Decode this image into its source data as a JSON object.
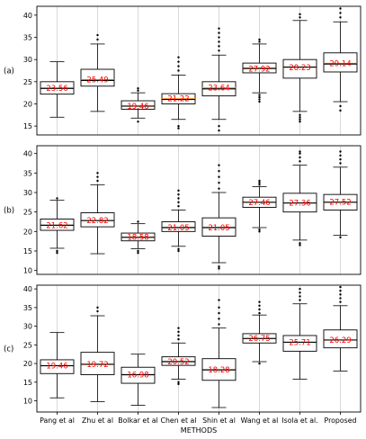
{
  "chart_data": {
    "type": "box",
    "xlabel": "METHODS",
    "categories": [
      "Pang et al",
      "Zhu et al",
      "Bolkar et al",
      "Chen et al",
      "Shin et al",
      "Wang et al",
      "Isola et al.",
      "Proposed"
    ],
    "panels": [
      {
        "label": "(a)",
        "ylim": [
          13,
          42
        ],
        "yticks": [
          "15",
          "20",
          "25",
          "30",
          "35",
          "40"
        ],
        "boxes": [
          {
            "whislo": 17.0,
            "q1": 22.2,
            "med": 23.5,
            "q3": 25.0,
            "whishi": 29.5,
            "mean": "23.56",
            "fliers": []
          },
          {
            "whislo": 18.3,
            "q1": 24.0,
            "med": 25.3,
            "q3": 27.8,
            "whishi": 33.5,
            "mean": "25.49",
            "fliers": [
              34.5,
              35.5
            ]
          },
          {
            "whislo": 16.8,
            "q1": 18.8,
            "med": 19.5,
            "q3": 20.7,
            "whishi": 22.5,
            "mean": "19.46",
            "fliers": [
              16.0,
              23.0,
              23.5
            ]
          },
          {
            "whislo": 16.5,
            "q1": 20.0,
            "med": 21.0,
            "q3": 22.3,
            "whishi": 26.5,
            "mean": "21.22",
            "fliers": [
              15.0,
              14.5,
              27.5,
              28.5,
              29.5,
              30.5
            ]
          },
          {
            "whislo": 16.5,
            "q1": 21.8,
            "med": 23.4,
            "q3": 25.0,
            "whishi": 31.0,
            "mean": "23.64",
            "fliers": [
              15.0,
              14.0,
              32.0,
              33.0,
              34.0,
              35.0,
              36.0,
              37.0
            ]
          },
          {
            "whislo": 22.5,
            "q1": 27.0,
            "med": 28.0,
            "q3": 29.2,
            "whishi": 33.5,
            "mean": "27.92",
            "fliers": [
              22.0,
              21.5,
              21.0,
              20.5,
              34.0,
              34.5
            ]
          },
          {
            "whislo": 18.3,
            "q1": 25.8,
            "med": 28.3,
            "q3": 30.0,
            "whishi": 38.8,
            "mean": "28.23",
            "fliers": [
              17.5,
              17.0,
              16.5,
              16.0,
              39.5,
              40.2
            ]
          },
          {
            "whislo": 20.5,
            "q1": 27.2,
            "med": 29.0,
            "q3": 31.5,
            "whishi": 38.5,
            "mean": "29.14",
            "fliers": [
              19.5,
              18.5,
              39.5,
              40.5,
              41.5
            ]
          }
        ]
      },
      {
        "label": "(b)",
        "ylim": [
          9,
          42
        ],
        "yticks": [
          "10",
          "15",
          "20",
          "25",
          "30",
          "35",
          "40"
        ],
        "boxes": [
          {
            "whislo": 15.7,
            "q1": 20.3,
            "med": 21.6,
            "q3": 23.2,
            "whishi": 28.0,
            "mean": "21.62",
            "fliers": [
              15.0,
              14.5,
              28.5
            ]
          },
          {
            "whislo": 14.3,
            "q1": 21.2,
            "med": 22.8,
            "q3": 24.8,
            "whishi": 32.0,
            "mean": "22.82",
            "fliers": [
              33.0,
              34.0,
              35.0
            ]
          },
          {
            "whislo": 15.6,
            "q1": 17.6,
            "med": 18.5,
            "q3": 19.6,
            "whishi": 22.0,
            "mean": "18.58",
            "fliers": [
              15.0,
              14.5,
              22.5
            ]
          },
          {
            "whislo": 16.2,
            "q1": 20.0,
            "med": 21.0,
            "q3": 22.5,
            "whishi": 25.5,
            "mean": "21.05",
            "fliers": [
              15.5,
              15.0,
              26.5,
              27.5,
              28.5,
              29.5,
              30.5
            ]
          },
          {
            "whislo": 12.0,
            "q1": 18.8,
            "med": 21.0,
            "q3": 23.5,
            "whishi": 30.0,
            "mean": "21.05",
            "fliers": [
              11.0,
              10.5,
              31.0,
              32.5,
              34.0,
              35.5,
              37.0
            ]
          },
          {
            "whislo": 21.0,
            "q1": 26.2,
            "med": 27.5,
            "q3": 28.8,
            "whishi": 31.5,
            "mean": "27.46",
            "fliers": [
              20.5,
              20.0,
              32.0,
              32.5,
              33.0
            ]
          },
          {
            "whislo": 17.8,
            "q1": 25.0,
            "med": 27.3,
            "q3": 29.8,
            "whishi": 37.0,
            "mean": "27.36",
            "fliers": [
              17.0,
              16.5,
              38.0,
              39.0,
              40.0,
              40.5
            ]
          },
          {
            "whislo": 19.0,
            "q1": 25.5,
            "med": 27.5,
            "q3": 29.5,
            "whishi": 36.5,
            "mean": "27.52",
            "fliers": [
              18.5,
              37.5,
              38.5,
              39.5,
              40.5
            ]
          }
        ]
      },
      {
        "label": "(c)",
        "ylim": [
          7,
          41
        ],
        "yticks": [
          "10",
          "15",
          "20",
          "25",
          "30",
          "35",
          "40"
        ],
        "boxes": [
          {
            "whislo": 10.8,
            "q1": 17.3,
            "med": 19.4,
            "q3": 21.0,
            "whishi": 28.3,
            "mean": "19.46",
            "fliers": []
          },
          {
            "whislo": 9.8,
            "q1": 17.0,
            "med": 19.8,
            "q3": 23.0,
            "whishi": 32.8,
            "mean": "19.72",
            "fliers": [
              34.0,
              35.0
            ]
          },
          {
            "whislo": 8.8,
            "q1": 14.7,
            "med": 17.0,
            "q3": 19.0,
            "whishi": 22.5,
            "mean": "16.98",
            "fliers": []
          },
          {
            "whislo": 15.8,
            "q1": 19.5,
            "med": 20.5,
            "q3": 21.8,
            "whishi": 25.5,
            "mean": "20.52",
            "fliers": [
              15.0,
              14.5,
              26.5,
              27.5,
              28.5,
              29.5
            ]
          },
          {
            "whislo": 8.2,
            "q1": 15.5,
            "med": 18.3,
            "q3": 21.3,
            "whishi": 29.5,
            "mean": "18.28",
            "fliers": [
              30.5,
              32.0,
              33.5,
              35.0,
              37.0
            ]
          },
          {
            "whislo": 20.5,
            "q1": 25.5,
            "med": 26.7,
            "q3": 28.0,
            "whishi": 33.0,
            "mean": "26.75",
            "fliers": [
              20.0,
              33.5,
              34.5,
              35.5,
              36.5
            ]
          },
          {
            "whislo": 15.8,
            "q1": 23.3,
            "med": 25.7,
            "q3": 27.5,
            "whishi": 36.0,
            "mean": "25.71",
            "fliers": [
              37.0,
              38.0,
              39.0,
              40.0
            ]
          },
          {
            "whislo": 18.0,
            "q1": 24.2,
            "med": 26.3,
            "q3": 29.0,
            "whishi": 35.5,
            "mean": "26.29",
            "fliers": [
              36.5,
              37.5,
              38.5,
              39.5,
              40.5
            ]
          }
        ]
      }
    ],
    "grid": "vertical",
    "mean_label_color": "#ff0000",
    "box_edge_color": "#000000",
    "grid_color": "#d0d0d0"
  }
}
